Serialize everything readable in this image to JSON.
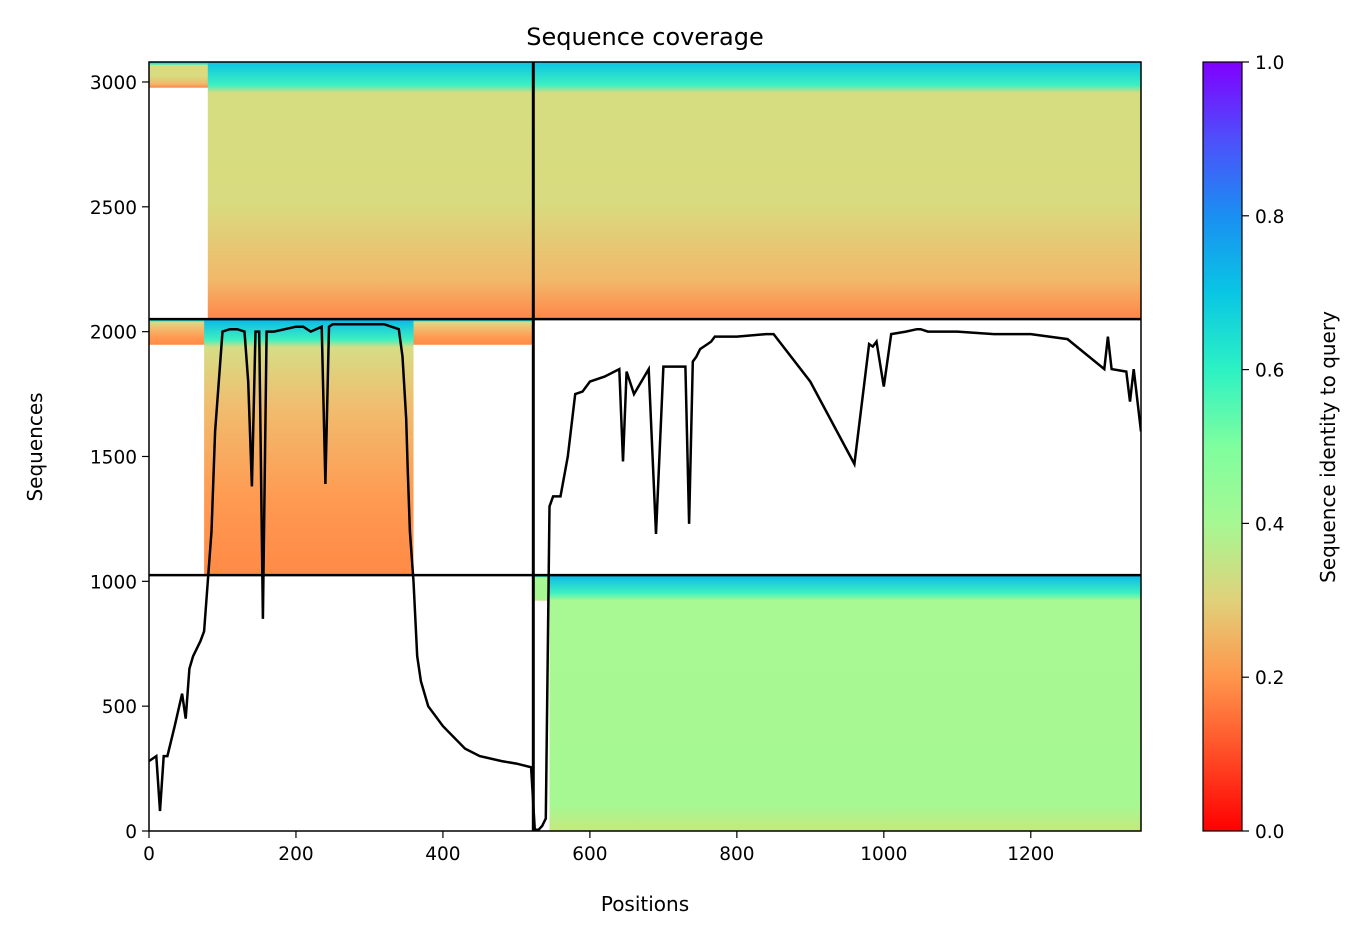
{
  "chart_data": {
    "type": "heatmap",
    "title": "Sequence coverage",
    "xlabel": "Positions",
    "ylabel": "Sequences",
    "xlim": [
      0,
      1350
    ],
    "ylim": [
      0,
      3080
    ],
    "xticks": [
      0,
      200,
      400,
      600,
      800,
      1000,
      1200
    ],
    "yticks": [
      0,
      500,
      1000,
      1500,
      2000,
      2500,
      3000
    ],
    "colorbar": {
      "label": "Sequence identity to query",
      "colormap": "rainbow",
      "range": [
        0.0,
        1.0
      ],
      "ticks": [
        "0.0",
        "0.2",
        "0.4",
        "0.6",
        "0.8",
        "1.0"
      ]
    },
    "chain_boundary_x": 523,
    "blocks": [
      {
        "name": "chain-1-only",
        "x_range": [
          0,
          523
        ],
        "y_range": [
          1025,
          2050
        ],
        "core_x_range": [
          75,
          360
        ],
        "identity_top": 0.6,
        "identity_bottom": 0.2
      },
      {
        "name": "chain-2-only",
        "x_range": [
          523,
          1350
        ],
        "y_range": [
          0,
          1025
        ],
        "core_x_range": [
          545,
          1350
        ],
        "identity_top": 0.6,
        "identity_bottom": 0.38
      },
      {
        "name": "paired",
        "x_range": [
          0,
          1350
        ],
        "y_range": [
          2050,
          3080
        ],
        "core_x_range": [
          80,
          1350
        ],
        "identity_top": 0.6,
        "identity_bottom": 0.2
      }
    ],
    "horizontal_separators": [
      1025,
      2050
    ],
    "coverage_line": {
      "x": [
        0,
        10,
        15,
        20,
        25,
        35,
        45,
        50,
        55,
        60,
        70,
        75,
        80,
        85,
        90,
        100,
        110,
        120,
        130,
        135,
        140,
        145,
        150,
        155,
        160,
        170,
        200,
        210,
        220,
        235,
        240,
        245,
        250,
        260,
        280,
        300,
        320,
        340,
        345,
        350,
        352,
        355,
        360,
        365,
        370,
        380,
        400,
        430,
        450,
        480,
        500,
        520,
        525,
        530,
        535,
        540,
        545,
        550,
        555,
        560,
        570,
        580,
        590,
        600,
        620,
        640,
        645,
        650,
        660,
        680,
        690,
        700,
        730,
        735,
        740,
        745,
        750,
        760,
        765,
        770,
        780,
        800,
        840,
        850,
        900,
        960,
        980,
        985,
        990,
        1000,
        1010,
        1030,
        1045,
        1050,
        1060,
        1100,
        1150,
        1200,
        1250,
        1300,
        1305,
        1310,
        1330,
        1335,
        1340,
        1350
      ],
      "y": [
        280,
        300,
        80,
        300,
        300,
        420,
        550,
        450,
        650,
        700,
        760,
        800,
        1000,
        1200,
        1600,
        2000,
        2010,
        2010,
        2000,
        1800,
        1380,
        2000,
        2000,
        850,
        2000,
        2000,
        2020,
        2020,
        2000,
        2020,
        1390,
        2020,
        2030,
        2030,
        2030,
        2030,
        2030,
        2010,
        1900,
        1650,
        1450,
        1200,
        1000,
        700,
        600,
        500,
        420,
        330,
        300,
        280,
        270,
        255,
        5,
        5,
        20,
        50,
        1300,
        1340,
        1340,
        1340,
        1500,
        1750,
        1760,
        1800,
        1820,
        1850,
        1480,
        1840,
        1750,
        1850,
        1190,
        1860,
        1860,
        1230,
        1880,
        1900,
        1930,
        1950,
        1960,
        1980,
        1980,
        1980,
        1990,
        1990,
        1800,
        1470,
        1950,
        1940,
        1960,
        1780,
        1990,
        2000,
        2010,
        2010,
        2000,
        2000,
        1990,
        1990,
        1970,
        1850,
        1980,
        1850,
        1840,
        1720,
        1850,
        1600
      ]
    }
  }
}
